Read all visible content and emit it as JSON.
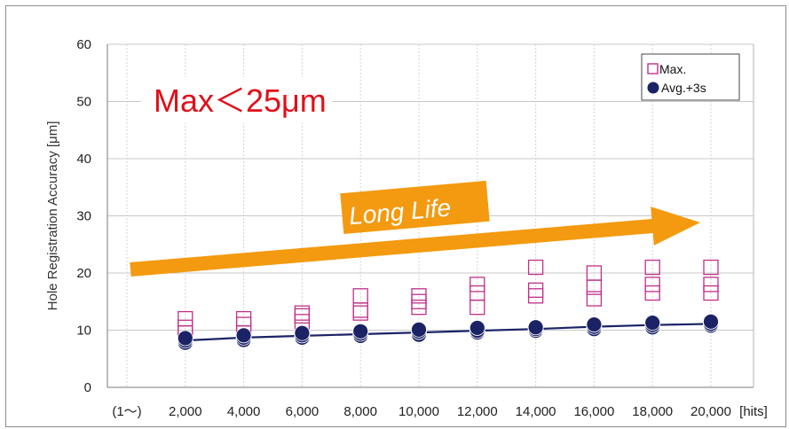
{
  "chart_data": {
    "type": "scatter",
    "ylabel": "Hole Registration Accuracy [μm]",
    "y_ticks": [
      "0",
      "10",
      "20",
      "30",
      "40",
      "50",
      "60"
    ],
    "ylim": [
      0,
      60
    ],
    "x_tick_labels": [
      "(1～)",
      "2,000",
      "4,000",
      "6,000",
      "8,000",
      "10,000",
      "12,000",
      "14,000",
      "16,000",
      "18,000",
      "20,000",
      "[hits]"
    ],
    "x": [
      2000,
      4000,
      6000,
      8000,
      10000,
      12000,
      14000,
      16000,
      18000,
      20000
    ],
    "grid": true,
    "legend_position": "top-right",
    "series": [
      {
        "name": "Max.",
        "marker": "open-square",
        "color": "#c0308a",
        "values": [
          [
            9.5,
            10.5,
            12
          ],
          [
            9.5,
            11,
            12
          ],
          [
            11.5,
            12.5,
            13
          ],
          [
            13,
            13.5,
            16
          ],
          [
            14,
            15,
            16
          ],
          [
            14,
            16.5,
            18
          ],
          [
            16,
            17,
            21
          ],
          [
            15.5,
            17.5,
            20
          ],
          [
            16.5,
            18,
            21
          ],
          [
            16.5,
            18,
            21
          ]
        ]
      },
      {
        "name": "Avg.+3s",
        "marker": "filled-circle",
        "color": "#1b2366",
        "values": [
          [
            7.8,
            8.2,
            8.6
          ],
          [
            8.3,
            8.7,
            9.1
          ],
          [
            8.7,
            9.1,
            9.5
          ],
          [
            9,
            9.4,
            9.8
          ],
          [
            9.2,
            9.7,
            10.1
          ],
          [
            9.6,
            9.9,
            10.4
          ],
          [
            9.9,
            10.2,
            10.5
          ],
          [
            10.2,
            10.6,
            11
          ],
          [
            10.5,
            10.9,
            11.3
          ],
          [
            10.8,
            11.1,
            11.5
          ]
        ]
      }
    ],
    "trend_line": {
      "color": "#1b2366",
      "values": [
        8.2,
        8.7,
        9.0,
        9.3,
        9.6,
        9.9,
        10.2,
        10.6,
        10.9,
        11.1
      ]
    },
    "annotations": {
      "max_text": "Max＜25μm",
      "arrow_text": "Long Life",
      "arrow_color": "#f39a10"
    }
  }
}
